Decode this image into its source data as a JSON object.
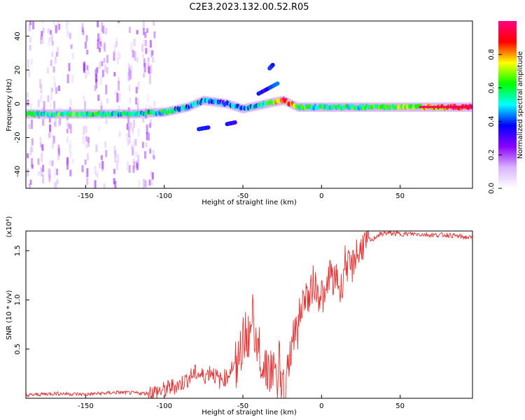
{
  "figure": {
    "title": "C2E3.2023.132.00.52.R05"
  },
  "chart_data": [
    {
      "type": "heatmap",
      "title": "C2E3.2023.132.00.52.R05",
      "xlabel": "Height of straight line (km)",
      "ylabel": "Frequency (Hz)",
      "xlim": [
        -188,
        96
      ],
      "ylim": [
        -50,
        49
      ],
      "xticks": [
        -150,
        -100,
        -50,
        0,
        50
      ],
      "yticks": [
        -40,
        -20,
        0,
        20,
        40
      ],
      "grid": false,
      "colorbar": {
        "label": "Normalized spectral amplitude",
        "range": [
          0,
          1
        ],
        "ticks": [
          "0.0",
          "0.2",
          "0.4",
          "0.6",
          "0.8"
        ],
        "colors": [
          "#ffffff",
          "#d9b3ff",
          "#8a00ff",
          "#0000ff",
          "#00ffff",
          "#00ff00",
          "#ffff00",
          "#ff0000",
          "#ff0080"
        ]
      },
      "ridge": {
        "x": [
          -188,
          -160,
          -120,
          -100,
          -85,
          -75,
          -60,
          -50,
          -40,
          -30,
          -24,
          -15,
          0,
          20,
          60,
          96
        ],
        "frequency": [
          -6,
          -6,
          -6,
          -5,
          -2,
          2,
          0,
          -3,
          -1,
          1,
          2,
          -2,
          -2,
          -2,
          -2,
          -2
        ],
        "amplitude": [
          0.55,
          0.6,
          0.5,
          0.55,
          0.45,
          0.5,
          0.4,
          0.45,
          0.5,
          0.7,
          0.95,
          0.6,
          0.55,
          0.55,
          0.7,
          0.95
        ]
      },
      "features": [
        {
          "x": [
            -78,
            -72
          ],
          "frequency": [
            -15,
            -14
          ]
        },
        {
          "x": [
            -60,
            -55
          ],
          "frequency": [
            -12,
            -11
          ]
        },
        {
          "x": [
            -33,
            -31
          ],
          "frequency": [
            21,
            23
          ]
        },
        {
          "x": [
            -40,
            -28
          ],
          "frequency": [
            6,
            12
          ]
        }
      ]
    },
    {
      "type": "line",
      "xlabel": "Height of straight line (km)",
      "ylabel": "SNR (10 * v/v)",
      "y_multiplier": "(x10⁴)",
      "xlim": [
        -188,
        96
      ],
      "ylim": [
        0,
        1.7
      ],
      "xticks": [
        -150,
        -100,
        -50,
        0,
        50
      ],
      "yticks": [
        "0.5",
        "1.0",
        "1.5"
      ],
      "grid": false,
      "series": [
        {
          "color": "#e63232",
          "x": [
            -188,
            -170,
            -150,
            -130,
            -112,
            -100,
            -95,
            -90,
            -85,
            -80,
            -75,
            -70,
            -65,
            -60,
            -57,
            -54,
            -50,
            -48,
            -46,
            -44,
            -42,
            -40,
            -37,
            -35,
            -33,
            -30,
            -28,
            -25,
            -22,
            -20,
            -18,
            -16,
            -14,
            -12,
            -10,
            -8,
            -5,
            -2,
            0,
            2,
            5,
            8,
            10,
            12,
            15,
            18,
            20,
            22,
            24,
            26,
            28,
            30,
            32,
            35,
            40,
            50,
            60,
            70,
            80,
            90,
            96
          ],
          "y": [
            0.03,
            0.05,
            0.04,
            0.06,
            0.05,
            0.08,
            0.12,
            0.14,
            0.2,
            0.26,
            0.22,
            0.28,
            0.18,
            0.22,
            0.32,
            0.28,
            0.55,
            0.72,
            0.55,
            0.6,
            0.48,
            0.55,
            0.32,
            0.38,
            0.25,
            0.3,
            0.12,
            0.1,
            0.16,
            0.45,
            0.7,
            0.6,
            0.85,
            0.95,
            1.1,
            0.98,
            1.2,
            1.05,
            1.1,
            0.95,
            1.3,
            1.15,
            1.25,
            1.05,
            1.4,
            1.3,
            1.35,
            1.5,
            1.45,
            1.58,
            1.55,
            1.62,
            1.6,
            1.65,
            1.68,
            1.67,
            1.67,
            1.66,
            1.66,
            1.64,
            1.63
          ]
        }
      ]
    }
  ]
}
